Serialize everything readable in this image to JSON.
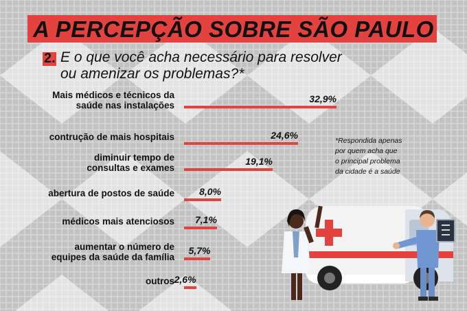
{
  "title": "A PERCEPÇÃO SOBRE SÃO PAULO",
  "question_number": "2.",
  "question": "E o que você acha necessário para resolver\nou amenizar os problemas?*",
  "note": "*Respondida apenas\npor quem acha que\no principal problema\nda cidade é a saúde",
  "colors": {
    "accent": "#e4423f",
    "text": "#111111",
    "background": "#cfcfcf"
  },
  "chart_data": {
    "type": "bar",
    "orientation": "horizontal",
    "categories": [
      "Mais médicos e técnicos da\nsaúde nas instalações",
      "contrução de mais hospitais",
      "diminuir tempo de\nconsultas e exames",
      "abertura de postos de saúde",
      "médicos mais atenciosos",
      "aumentar o número de\nequipes da saúde da família",
      "outros"
    ],
    "values": [
      32.9,
      24.6,
      19.1,
      8.0,
      7.1,
      5.7,
      2.6
    ],
    "labels": [
      "32,9%",
      "24,6%",
      "19,1%",
      "8,0%",
      "7,1%",
      "5,7%",
      "2,6%"
    ],
    "unit": "%",
    "grid": false,
    "legend": "none"
  }
}
